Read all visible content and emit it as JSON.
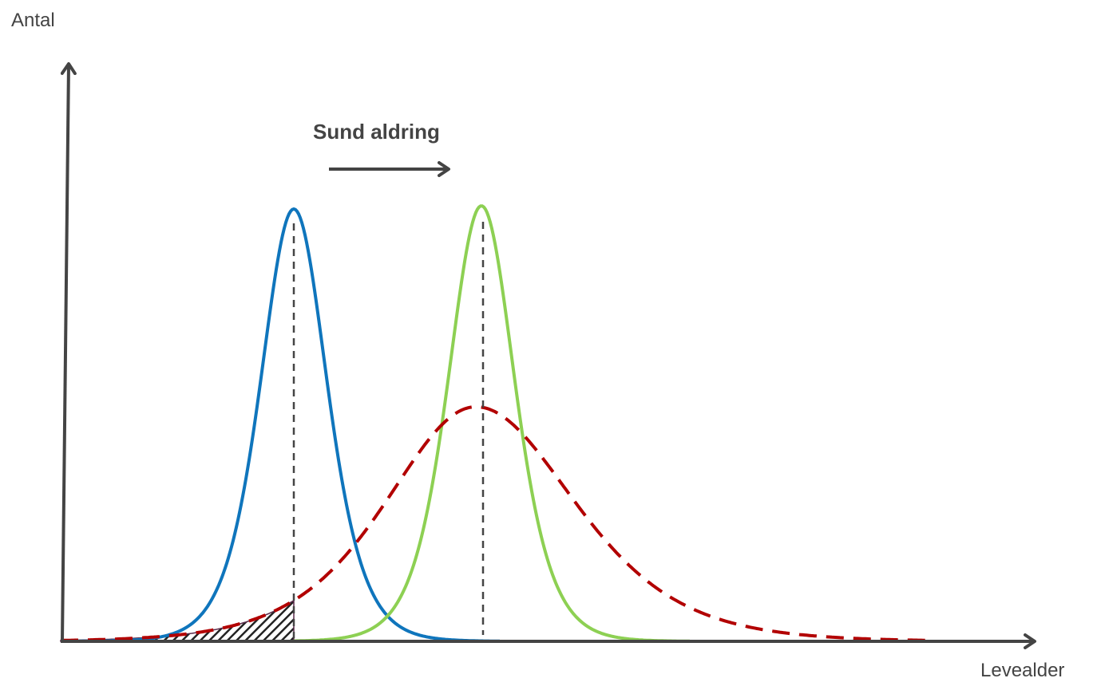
{
  "axes": {
    "y_label": "Antal",
    "x_label": "Levealder"
  },
  "annotation": {
    "text": "Sund aldring"
  },
  "colors": {
    "axis": "#444444",
    "blue_curve": "#0f75bc",
    "green_curve": "#8dd053",
    "red_dashed_curve": "#b20000",
    "guide_lines": "#444444",
    "hatch": "#222222"
  },
  "icons": {
    "annotation_arrow": "right-arrow-icon"
  }
}
